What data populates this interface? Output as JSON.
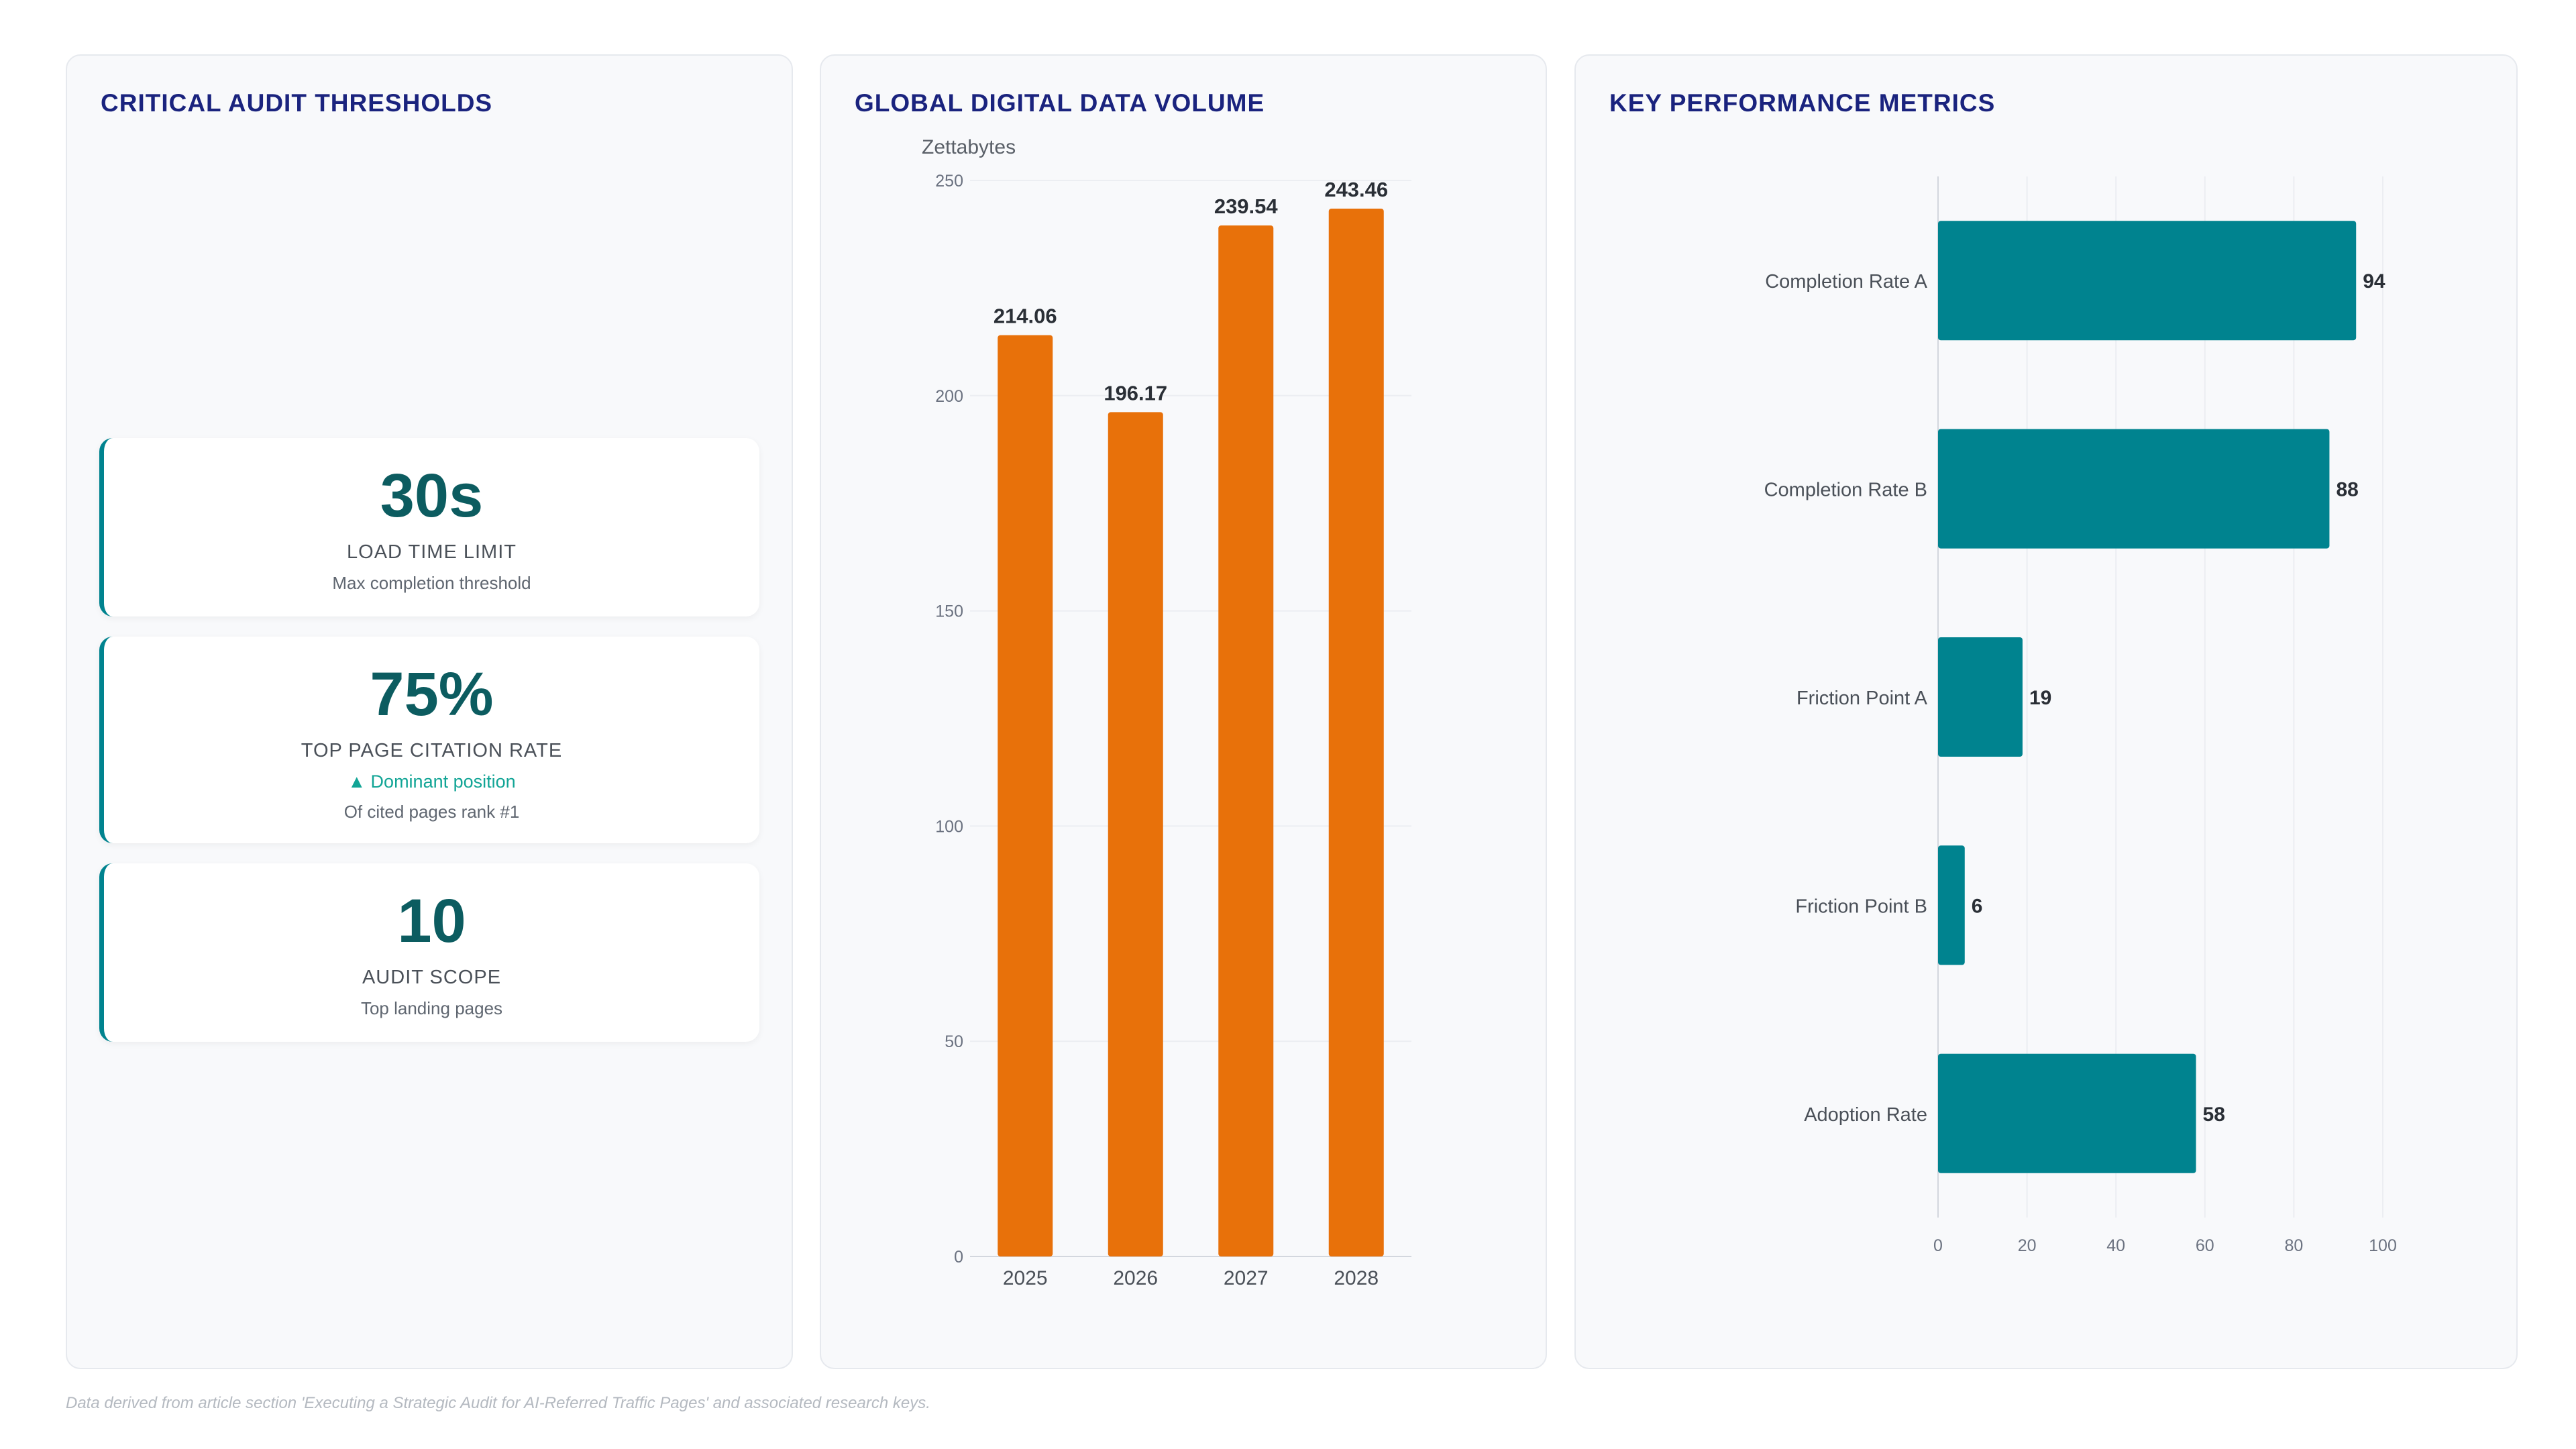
{
  "kpi_panel": {
    "title": "CRITICAL AUDIT THRESHOLDS",
    "cards": [
      {
        "value": "30s",
        "label": "LOAD TIME LIMIT",
        "trend": "",
        "sub": "Max completion threshold"
      },
      {
        "value": "75%",
        "label": "TOP PAGE CITATION RATE",
        "trend": "▲ Dominant position",
        "sub": "Of cited pages rank #1"
      },
      {
        "value": "10",
        "label": "AUDIT SCOPE",
        "trend": "",
        "sub": "Top landing pages"
      }
    ]
  },
  "volume_panel": {
    "title": "GLOBAL DIGITAL DATA VOLUME"
  },
  "performance_panel": {
    "title": "KEY PERFORMANCE METRICS"
  },
  "footer": "Data derived from article section 'Executing a Strategic Audit for AI-Referred Traffic Pages' and associated research keys.",
  "colors": {
    "bar_orange": "#e8710a",
    "bar_teal": "#00838f",
    "title": "#1a237e"
  },
  "chart_data": [
    {
      "type": "bar",
      "orientation": "vertical",
      "title": "GLOBAL DIGITAL DATA VOLUME",
      "ylabel": "Zettabytes",
      "categories": [
        "2025",
        "2026",
        "2027",
        "2028"
      ],
      "values": [
        214.06,
        196.17,
        239.54,
        243.46
      ],
      "value_labels": [
        "214.06",
        "196.17",
        "239.54",
        "243.46"
      ],
      "ylim": [
        0,
        250
      ],
      "yticks": [
        0,
        50,
        100,
        150,
        200,
        250
      ],
      "grid": true
    },
    {
      "type": "bar",
      "orientation": "horizontal",
      "title": "KEY PERFORMANCE METRICS",
      "categories": [
        "Completion Rate A",
        "Completion Rate B",
        "Friction Point A",
        "Friction Point B",
        "Adoption Rate"
      ],
      "values": [
        94,
        88,
        19,
        6,
        58
      ],
      "xlim": [
        0,
        100
      ],
      "xticks": [
        0,
        20,
        40,
        60,
        80,
        100
      ],
      "grid": true
    }
  ]
}
